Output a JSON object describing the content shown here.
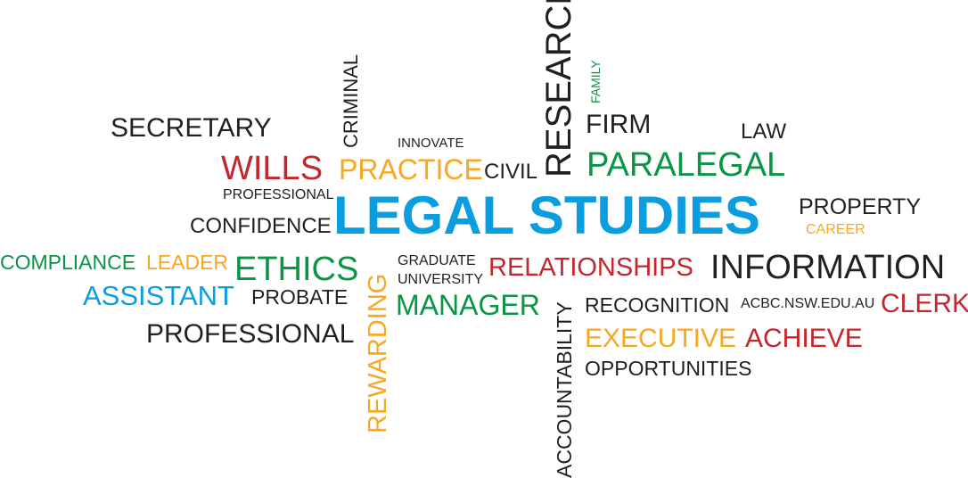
{
  "colors": {
    "blue": "#0a9ee0",
    "red": "#c1272d",
    "orange": "#f7a823",
    "green": "#0a9446",
    "dark": "#231f20"
  },
  "words": {
    "secretary": "SECRETARY",
    "criminal": "CRIMINAL",
    "research": "RESEARCH",
    "family": "FAMILY",
    "firm": "FIRM",
    "law": "LAW",
    "innovate": "INNOVATE",
    "wills": "WILLS",
    "practice": "PRACTICE",
    "civil": "CIVIL",
    "paralegal": "PARALEGAL",
    "professional_small": "PROFESSIONAL",
    "confidence": "CONFIDENCE",
    "legal_studies": "LEGAL STUDIES",
    "property": "PROPERTY",
    "career": "CAREER",
    "compliance": "COMPLIANCE",
    "leader": "LEADER",
    "ethics": "ETHICS",
    "graduate": "GRADUATE",
    "university": "UNIVERSITY",
    "relationships": "RELATIONSHIPS",
    "information": "INFORMATION",
    "assistant": "ASSISTANT",
    "probate": "PROBATE",
    "rewarding": "REWARDING",
    "manager": "MANAGER",
    "accountability": "ACCOUNTABILITY",
    "recognition": "RECOGNITION",
    "website": "ACBC.NSW.EDU.AU",
    "clerk": "CLERK",
    "professional_large": "PROFESSIONAL",
    "executive": "EXECUTIVE",
    "achieve": "ACHIEVE",
    "opportunities": "OPPORTUNITIES"
  }
}
